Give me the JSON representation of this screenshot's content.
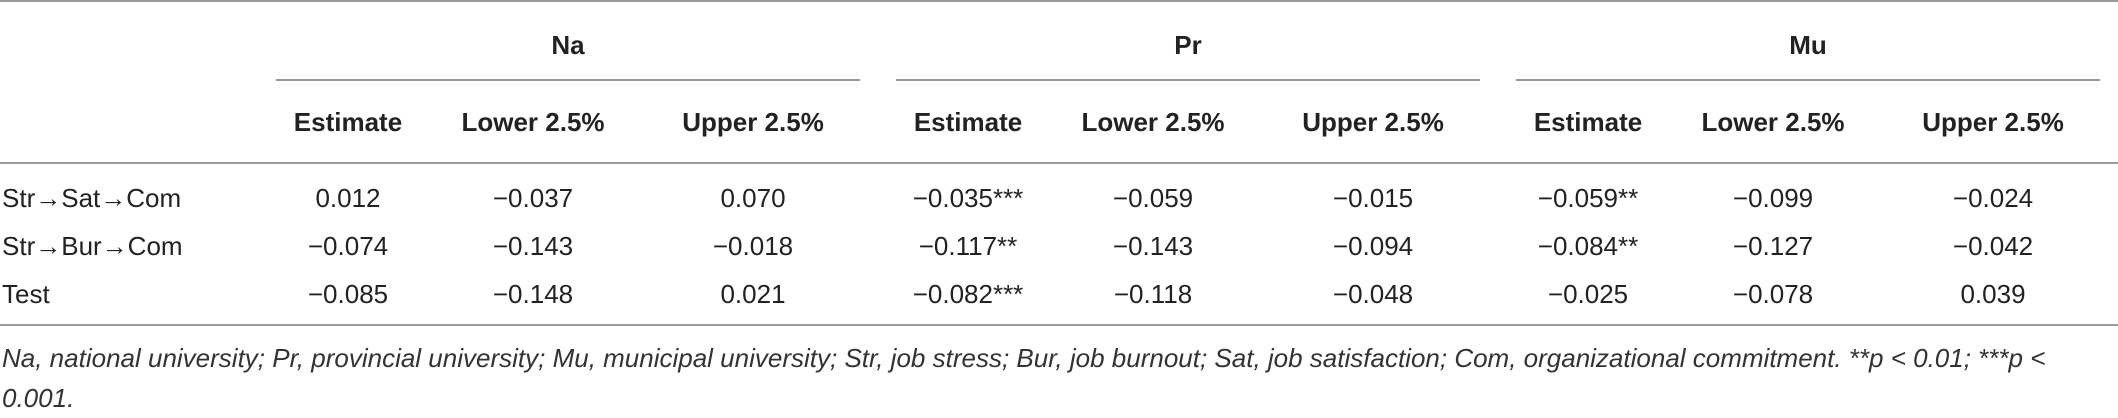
{
  "table": {
    "groups": [
      "Na",
      "Pr",
      "Mu"
    ],
    "stub_header": "",
    "columns": [
      "Estimate",
      "Lower 2.5%",
      "Upper 2.5%",
      "Estimate",
      "Lower 2.5%",
      "Upper 2.5%",
      "Estimate",
      "Lower 2.5%",
      "Upper 2.5%"
    ],
    "rows": [
      [
        "Str→Sat→Com",
        "0.012",
        "−0.037",
        "0.070",
        "−0.035***",
        "−0.059",
        "−0.015",
        "−0.059**",
        "−0.099",
        "−0.024"
      ],
      [
        "Str→Bur→Com",
        "−0.074",
        "−0.143",
        "−0.018",
        "−0.117**",
        "−0.143",
        "−0.094",
        "−0.084**",
        "−0.127",
        "−0.042"
      ],
      [
        "Test",
        "−0.085",
        "−0.148",
        "0.021",
        "−0.082***",
        "−0.118",
        "−0.048",
        "−0.025",
        "−0.078",
        "0.039"
      ]
    ],
    "footnote": "Na, national university; Pr, provincial university; Mu, municipal university; Str, job stress; Bur, job burnout; Sat, job satisfaction; Com, organizational commitment. **p < 0.01; ***p < 0.001."
  }
}
